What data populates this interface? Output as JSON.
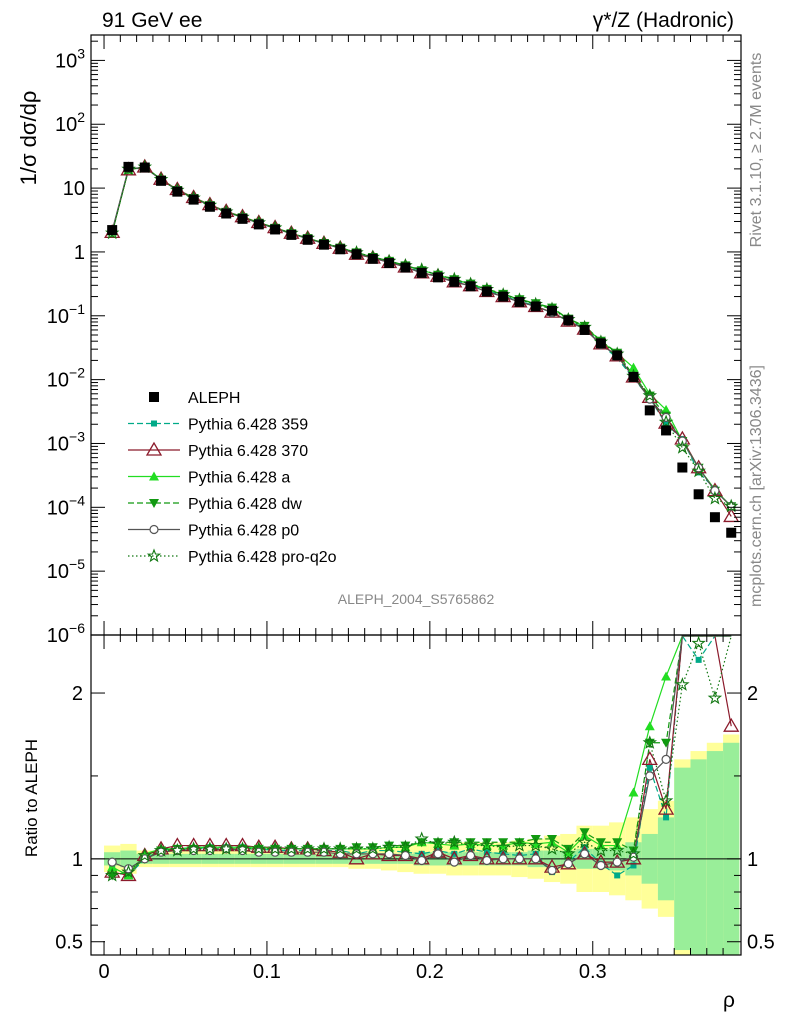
{
  "header": {
    "left": "91 GeV ee",
    "right": "γ*/Z (Hadronic)"
  },
  "side_text": {
    "rivet": "Rivet 3.1.10, ≥ 2.7M events",
    "site": "mcplots.cern.ch [arXiv:1306.3436]"
  },
  "analysis_label": "ALEPH_2004_S5765862",
  "colors": {
    "ALEPH": "#000000",
    "p359": "#00aa88",
    "p370": "#8b1a2b",
    "pa": "#22dd22",
    "pdw": "#119911",
    "pp0": "#555555",
    "pq2o": "#117711",
    "band_stat": "#99ee99",
    "band_total": "#ffff99"
  },
  "chart_data": [
    {
      "type": "scatter",
      "ylabel": "1/σ  dσ/dρ",
      "xlabel": "ρ",
      "yscale": "log",
      "ylim": [
        1e-06,
        2500
      ],
      "xlim": [
        -0.008,
        0.391
      ],
      "yticks": [
        {
          "v": 1e-06,
          "m": "10",
          "e": "−6"
        },
        {
          "v": 1e-05,
          "m": "10",
          "e": "−5"
        },
        {
          "v": 0.0001,
          "m": "10",
          "e": "−4"
        },
        {
          "v": 0.001,
          "m": "10",
          "e": "−3"
        },
        {
          "v": 0.01,
          "m": "10",
          "e": "−2"
        },
        {
          "v": 0.1,
          "m": "10",
          "e": "−1"
        },
        {
          "v": 1,
          "m": "1",
          "e": ""
        },
        {
          "v": 10,
          "m": "10",
          "e": ""
        },
        {
          "v": 100,
          "m": "10",
          "e": "2"
        },
        {
          "v": 1000,
          "m": "10",
          "e": "3"
        }
      ],
      "legend_position": "lower-left",
      "x": [
        0.005,
        0.015,
        0.025,
        0.035,
        0.045,
        0.055,
        0.065,
        0.075,
        0.085,
        0.095,
        0.105,
        0.115,
        0.125,
        0.135,
        0.145,
        0.155,
        0.165,
        0.175,
        0.185,
        0.195,
        0.205,
        0.215,
        0.225,
        0.235,
        0.245,
        0.255,
        0.265,
        0.275,
        0.285,
        0.295,
        0.305,
        0.315,
        0.325,
        0.335,
        0.345,
        0.355,
        0.365,
        0.375,
        0.385
      ],
      "data": [
        2.2,
        21.5,
        21.0,
        13.0,
        8.8,
        6.6,
        5.1,
        4.0,
        3.3,
        2.7,
        2.25,
        1.85,
        1.55,
        1.3,
        1.1,
        0.92,
        0.78,
        0.67,
        0.57,
        0.47,
        0.4,
        0.34,
        0.29,
        0.24,
        0.2,
        0.165,
        0.14,
        0.12,
        0.085,
        0.06,
        0.037,
        0.024,
        0.011,
        0.0033,
        0.0016,
        0.00042,
        0.00016,
        7e-05,
        4e-05
      ],
      "ratio_series": [
        {
          "name": "Pythia 6.428 359",
          "key": "p359",
          "marker": "square",
          "dash": "6,3",
          "values": [
            0.95,
            0.9,
            1.0,
            1.05,
            1.06,
            1.06,
            1.07,
            1.07,
            1.07,
            1.06,
            1.05,
            1.05,
            1.05,
            1.05,
            1.05,
            1.03,
            1.05,
            1.05,
            1.04,
            1.03,
            1.05,
            1.03,
            1.06,
            1.04,
            1.03,
            1.02,
            1.03,
            0.92,
            0.98,
            1.07,
            0.97,
            0.9,
            0.96,
            1.55,
            1.25,
            2.8,
            2.2,
            2.8,
            2.5
          ]
        },
        {
          "name": "Pythia 6.428 370",
          "key": "p370",
          "marker": "triangle-open",
          "dash": "",
          "values": [
            0.92,
            0.9,
            1.02,
            1.06,
            1.08,
            1.08,
            1.08,
            1.08,
            1.08,
            1.07,
            1.07,
            1.06,
            1.06,
            1.05,
            1.04,
            1.0,
            1.03,
            1.02,
            1.02,
            1.0,
            1.04,
            1.0,
            1.02,
            1.0,
            1.0,
            1.0,
            1.0,
            0.95,
            0.97,
            1.03,
            0.98,
            0.98,
            1.0,
            1.6,
            1.3,
            2.8,
            2.6,
            2.6,
            1.8
          ]
        },
        {
          "name": "Pythia 6.428 a",
          "key": "pa",
          "marker": "triangle-up",
          "dash": "",
          "values": [
            0.95,
            0.9,
            1.03,
            1.06,
            1.06,
            1.07,
            1.07,
            1.07,
            1.07,
            1.07,
            1.06,
            1.06,
            1.06,
            1.06,
            1.06,
            1.06,
            1.06,
            1.07,
            1.07,
            1.1,
            1.09,
            1.08,
            1.09,
            1.08,
            1.08,
            1.1,
            1.09,
            1.1,
            1.04,
            1.14,
            1.08,
            1.08,
            1.4,
            1.8,
            2.1,
            2.6,
            2.6,
            2.7,
            2.6
          ]
        },
        {
          "name": "Pythia 6.428 dw",
          "key": "pdw",
          "marker": "triangle-down",
          "dash": "6,3",
          "values": [
            0.9,
            0.92,
            1.0,
            1.05,
            1.06,
            1.06,
            1.06,
            1.06,
            1.06,
            1.06,
            1.06,
            1.06,
            1.06,
            1.06,
            1.06,
            1.07,
            1.07,
            1.08,
            1.08,
            1.1,
            1.1,
            1.1,
            1.1,
            1.1,
            1.1,
            1.1,
            1.12,
            1.12,
            1.06,
            1.16,
            1.1,
            1.1,
            1.05,
            1.7,
            1.7,
            2.6,
            2.6,
            2.6,
            2.6
          ]
        },
        {
          "name": "Pythia 6.428 p0",
          "key": "pp0",
          "marker": "circle-open",
          "dash": "",
          "values": [
            0.98,
            0.94,
            1.0,
            1.04,
            1.05,
            1.05,
            1.05,
            1.06,
            1.05,
            1.04,
            1.04,
            1.04,
            1.04,
            1.04,
            1.03,
            1.03,
            1.03,
            1.03,
            1.02,
            0.99,
            1.03,
            0.98,
            1.02,
            0.99,
            1.0,
            1.0,
            1.0,
            0.93,
            0.97,
            1.03,
            0.96,
            0.98,
            1.01,
            1.5,
            1.6,
            2.6,
            2.6,
            2.6,
            2.6
          ]
        },
        {
          "name": "Pythia 6.428 pro-q2o",
          "key": "pq2o",
          "marker": "star-open",
          "dash": "1.5,2.5",
          "values": [
            0.9,
            0.92,
            1.02,
            1.05,
            1.05,
            1.06,
            1.06,
            1.06,
            1.06,
            1.06,
            1.06,
            1.06,
            1.06,
            1.06,
            1.06,
            1.06,
            1.06,
            1.07,
            1.07,
            1.12,
            1.09,
            1.1,
            1.08,
            1.08,
            1.07,
            1.08,
            1.08,
            1.06,
            1.03,
            1.1,
            1.05,
            1.05,
            1.03,
            1.7,
            1.35,
            2.05,
            2.3,
            1.97,
            2.6
          ]
        }
      ],
      "legend_order": [
        "ALEPH",
        "p359",
        "p370",
        "pa",
        "pdw",
        "pp0",
        "pq2o"
      ],
      "legend_names": {
        "ALEPH": "ALEPH"
      }
    },
    {
      "type": "scatter",
      "ylabel": "Ratio to ALEPH",
      "xlabel": "ρ",
      "ylim": [
        0.42,
        2.35
      ],
      "yticks": [
        0.5,
        1,
        2
      ],
      "xticks": [
        0,
        0.1,
        0.2,
        0.3
      ],
      "bands": {
        "stat_half_width": [
          0.04,
          0.05,
          0.03,
          0.03,
          0.03,
          0.03,
          0.03,
          0.03,
          0.03,
          0.03,
          0.03,
          0.03,
          0.03,
          0.03,
          0.03,
          0.03,
          0.03,
          0.03,
          0.03,
          0.04,
          0.04,
          0.04,
          0.04,
          0.04,
          0.04,
          0.04,
          0.05,
          0.05,
          0.05,
          0.06,
          0.06,
          0.07,
          0.1,
          0.15,
          0.25,
          0.55,
          0.6,
          0.65,
          0.7
        ],
        "total_half_width": [
          0.08,
          0.09,
          0.05,
          0.05,
          0.05,
          0.05,
          0.05,
          0.05,
          0.05,
          0.05,
          0.05,
          0.05,
          0.05,
          0.05,
          0.05,
          0.06,
          0.06,
          0.07,
          0.08,
          0.09,
          0.09,
          0.1,
          0.1,
          0.1,
          0.1,
          0.11,
          0.12,
          0.14,
          0.15,
          0.2,
          0.2,
          0.22,
          0.25,
          0.3,
          0.35,
          0.6,
          0.65,
          0.7,
          0.75
        ]
      }
    }
  ]
}
